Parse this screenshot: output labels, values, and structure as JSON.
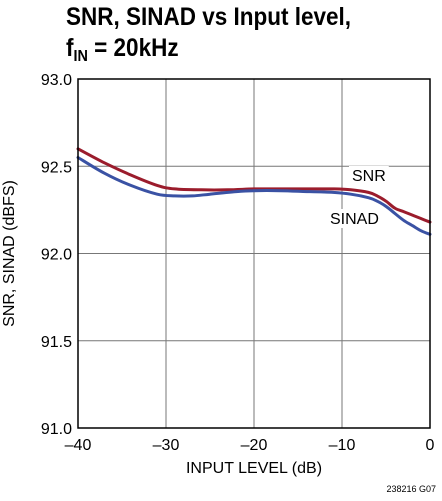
{
  "title": {
    "line1": "SNR, SINAD vs Input level,",
    "line2_prefix": "f",
    "line2_sub": "IN",
    "line2_suffix": " = 20kHz"
  },
  "figure_code": "238216 G07",
  "chart_data": {
    "type": "line",
    "xlabel": "INPUT LEVEL (dB)",
    "ylabel": "SNR, SINAD (dBFS)",
    "xlim": [
      -40,
      0
    ],
    "ylim": [
      91.0,
      93.0
    ],
    "x_ticks": [
      -40,
      -30,
      -20,
      -10,
      0
    ],
    "x_tick_labels": [
      "–40",
      "–30",
      "–20",
      "–10",
      "0"
    ],
    "y_ticks": [
      91.0,
      91.5,
      92.0,
      92.5,
      93.0
    ],
    "y_tick_labels": [
      "91.0",
      "91.5",
      "92.0",
      "92.5",
      "93.0"
    ],
    "grid": true,
    "series": [
      {
        "name": "SNR",
        "color": "#9b1c2c",
        "x": [
          -40,
          -37,
          -34,
          -31,
          -29,
          -26,
          -23,
          -20,
          -17,
          -14,
          -11,
          -9,
          -7,
          -6,
          -5,
          -4,
          -3,
          -2,
          -1,
          0
        ],
        "y": [
          92.6,
          92.52,
          92.45,
          92.39,
          92.37,
          92.365,
          92.365,
          92.37,
          92.37,
          92.37,
          92.37,
          92.365,
          92.35,
          92.33,
          92.3,
          92.26,
          92.24,
          92.22,
          92.2,
          92.18
        ]
      },
      {
        "name": "SINAD",
        "color": "#3a52a4",
        "x": [
          -40,
          -37,
          -34,
          -31,
          -29,
          -27,
          -25,
          -22,
          -20,
          -17,
          -14,
          -11,
          -9,
          -7,
          -6,
          -5,
          -4,
          -3,
          -2,
          -1,
          0
        ],
        "y": [
          92.55,
          92.46,
          92.39,
          92.34,
          92.33,
          92.33,
          92.34,
          92.355,
          92.36,
          92.36,
          92.355,
          92.35,
          92.34,
          92.32,
          92.3,
          92.27,
          92.23,
          92.19,
          92.16,
          92.13,
          92.11
        ]
      }
    ]
  }
}
